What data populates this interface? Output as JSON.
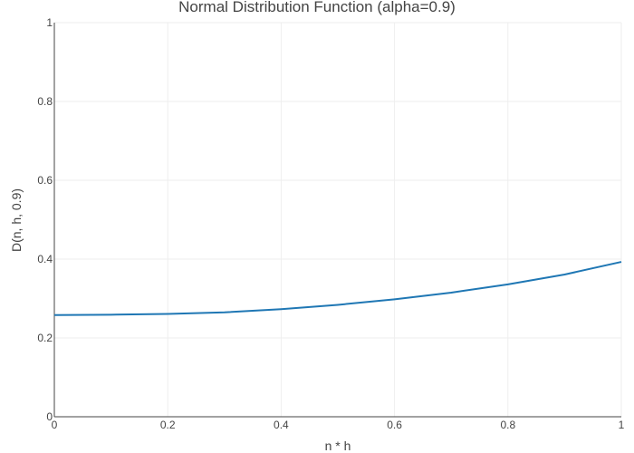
{
  "chart_data": {
    "type": "line",
    "title": "Normal Distribution Function (alpha=0.9)",
    "xlabel": "n * h",
    "ylabel": "D(n, h, 0.9)",
    "xlim": [
      0,
      1
    ],
    "ylim": [
      0,
      1
    ],
    "x_ticks": [
      "0",
      "0.2",
      "0.4",
      "0.6",
      "0.8",
      "1"
    ],
    "y_ticks": [
      "0",
      "0.2",
      "0.4",
      "0.6",
      "0.8",
      "1"
    ],
    "grid": true,
    "legend": "none",
    "series": [
      {
        "color": "#1f77b4",
        "x": [
          0,
          0.1,
          0.2,
          0.3,
          0.4,
          0.5,
          0.6,
          0.7,
          0.8,
          0.9,
          1.0
        ],
        "y": [
          0.258,
          0.259,
          0.261,
          0.265,
          0.273,
          0.284,
          0.298,
          0.315,
          0.336,
          0.361,
          0.393
        ]
      }
    ]
  }
}
